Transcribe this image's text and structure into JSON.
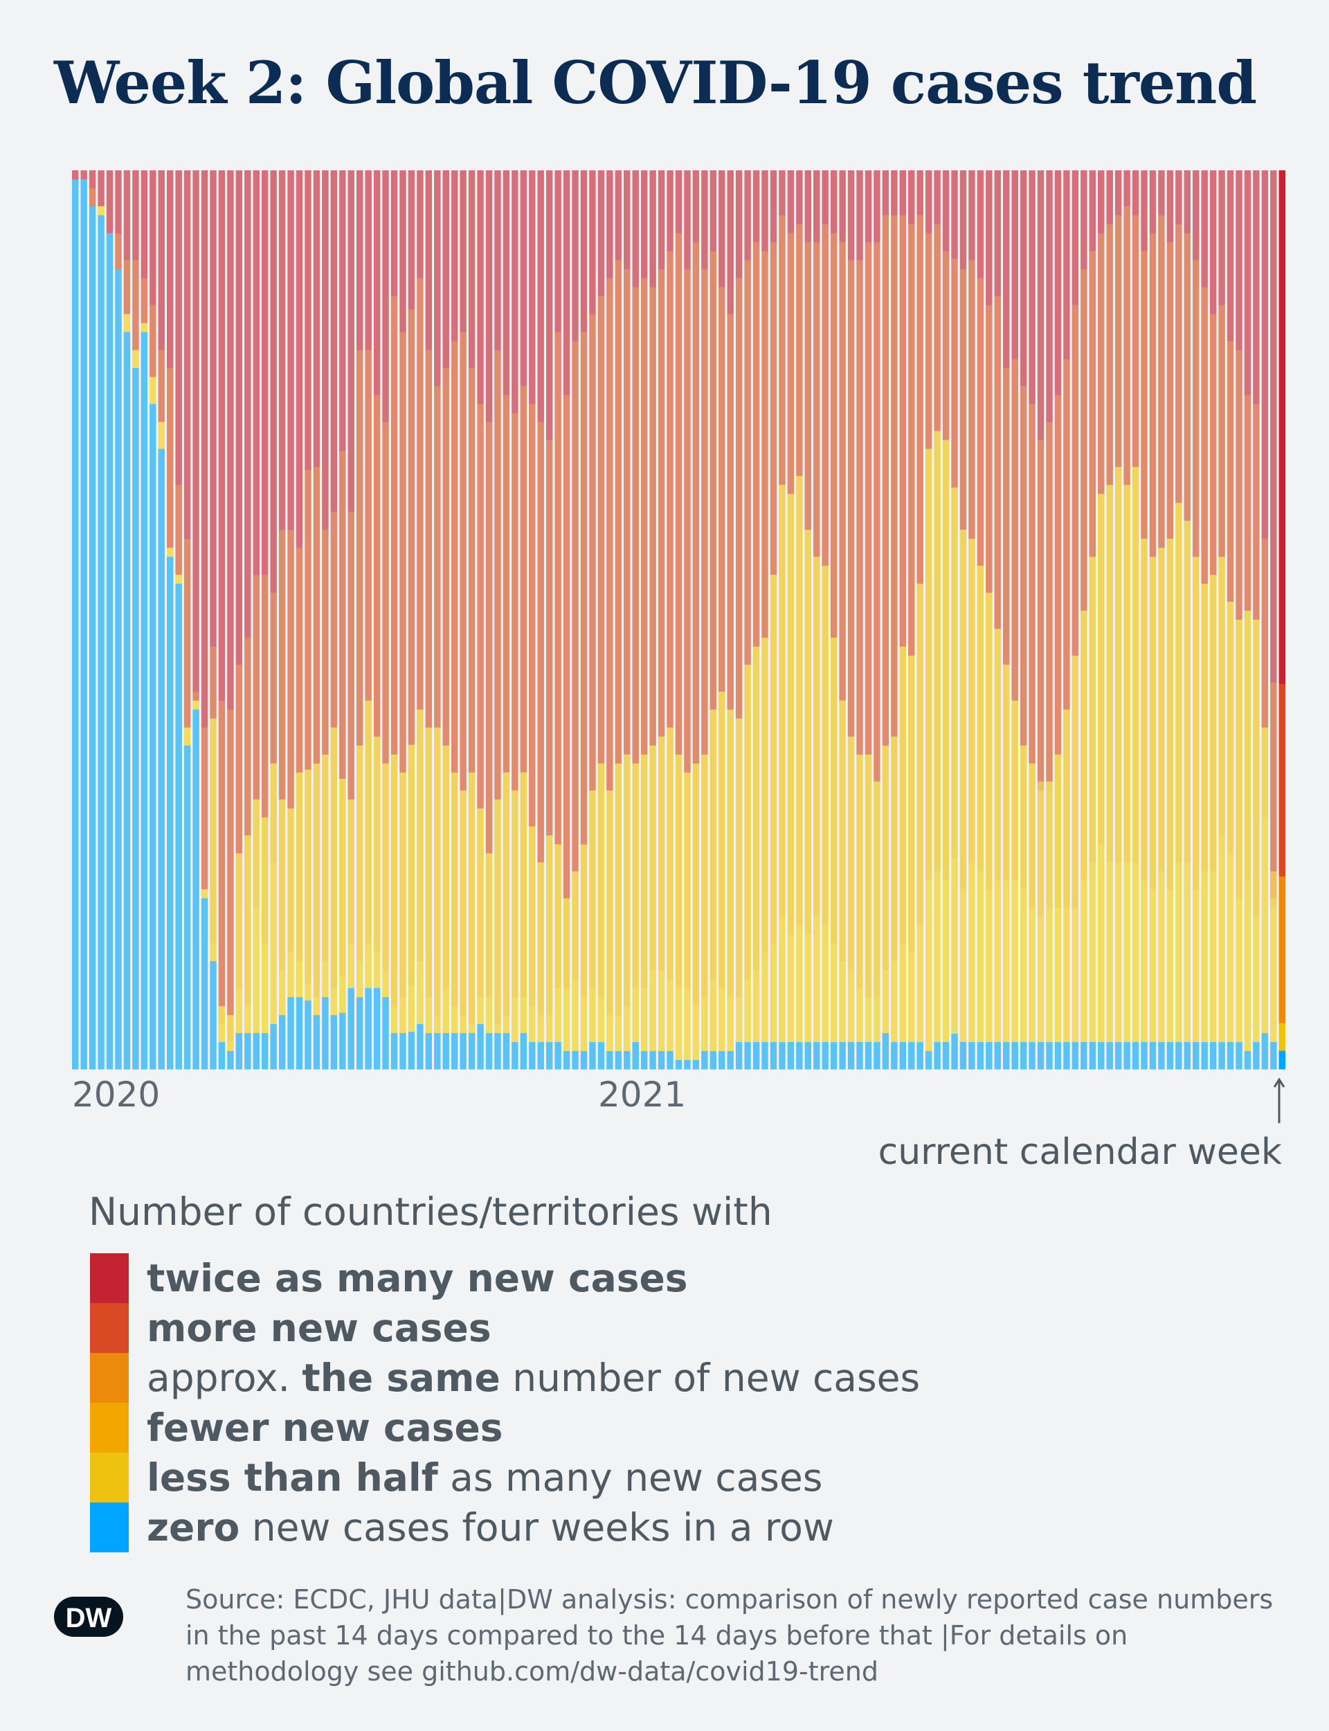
{
  "title": "Week 2: Global COVID-19 cases trend",
  "axis": {
    "year_2020": "2020",
    "year_2021": "2021"
  },
  "current_week_label": "current calendar week",
  "legend": {
    "heading": "Number of countries/territories with",
    "items": [
      {
        "bold": "twice as many new cases",
        "rest": "",
        "prefix": "",
        "color": "#c42331"
      },
      {
        "bold": "more new cases",
        "rest": "",
        "prefix": "",
        "color": "#d94a24"
      },
      {
        "bold": "the same",
        "rest": " number of new cases",
        "prefix": "approx. ",
        "color": "#ec8a0b"
      },
      {
        "bold": "fewer new cases",
        "rest": "",
        "prefix": "",
        "color": "#f2a700"
      },
      {
        "bold": "less than half",
        "rest": " as many new cases",
        "prefix": "",
        "color": "#eec20f"
      },
      {
        "bold": "zero",
        "rest": " new cases four weeks in a row",
        "prefix": "",
        "color": "#00a5ff"
      }
    ]
  },
  "source": "Source: ECDC, JHU data|DW analysis: comparison of newly reported case numbers in the past 14 days compared to the 14 days before that |For details on methodology see github.com/dw-data/covid19-trend",
  "logo_text": "DW",
  "colors": {
    "past": [
      "#d5707b",
      "#e08a6e",
      "#f1c05a",
      "#f1d460",
      "#f3dc63",
      "#5bc2f5"
    ],
    "current": [
      "#c42331",
      "#d94a24",
      "#ec8a0b",
      "#f2a700",
      "#eec20f",
      "#00a5ff"
    ]
  },
  "chart_data": {
    "type": "bar",
    "stacked": true,
    "normalized": true,
    "y_unit": "share of countries/territories (%)",
    "ylim": [
      0,
      100
    ],
    "series_order": [
      "twice as many new cases",
      "more new cases",
      "approx. the same",
      "fewer new cases",
      "less than half",
      "zero"
    ],
    "x_ticks": [
      {
        "label": "2020",
        "index": 0
      },
      {
        "label": "2021",
        "index": 74
      }
    ],
    "weeks": [
      [
        1,
        0,
        0,
        0,
        0,
        99
      ],
      [
        1,
        0,
        0,
        0,
        0,
        99
      ],
      [
        2,
        2,
        0,
        0,
        0,
        96
      ],
      [
        4,
        0,
        0,
        0,
        1,
        95
      ],
      [
        7,
        0,
        0,
        0,
        0,
        93
      ],
      [
        7,
        4,
        0,
        0,
        0,
        89
      ],
      [
        10,
        6,
        0,
        0,
        2,
        82
      ],
      [
        10,
        10,
        0,
        0,
        2,
        78
      ],
      [
        12,
        5,
        0,
        0,
        1,
        82
      ],
      [
        15,
        8,
        0,
        0,
        3,
        74
      ],
      [
        20,
        8,
        0,
        0,
        3,
        69
      ],
      [
        22,
        20,
        0,
        0,
        1,
        57
      ],
      [
        35,
        10,
        0,
        0,
        1,
        54
      ],
      [
        41,
        21,
        0,
        0,
        2,
        36
      ],
      [
        58,
        1,
        0,
        0,
        1,
        40
      ],
      [
        62,
        18,
        0,
        0,
        1,
        19
      ],
      [
        53,
        8,
        0,
        25,
        2,
        12
      ],
      [
        59,
        34,
        0,
        2,
        2,
        3
      ],
      [
        60,
        34,
        0,
        3,
        1,
        2
      ],
      [
        55,
        21,
        0,
        15,
        5,
        4
      ],
      [
        52,
        22,
        0,
        19,
        3,
        4
      ],
      [
        45,
        25,
        0,
        12,
        14,
        4
      ],
      [
        45,
        27,
        0,
        14,
        10,
        4
      ],
      [
        47,
        19,
        0,
        11,
        18,
        5
      ],
      [
        40,
        30,
        0,
        19,
        5,
        6
      ],
      [
        40,
        31,
        0,
        16,
        5,
        8
      ],
      [
        42,
        25,
        0,
        21,
        4,
        8
      ],
      [
        35,
        35,
        0,
        25,
        2,
        8
      ],
      [
        33,
        33,
        0,
        26,
        2,
        6
      ],
      [
        40,
        25,
        0,
        23,
        4,
        8
      ],
      [
        38,
        24,
        0,
        29,
        3,
        6
      ],
      [
        30,
        35,
        0,
        21,
        4,
        6
      ],
      [
        38,
        32,
        0,
        16,
        5,
        9
      ],
      [
        20,
        44,
        0,
        24,
        4,
        8
      ],
      [
        20,
        39,
        0,
        27,
        5,
        9
      ],
      [
        25,
        38,
        0,
        24,
        4,
        9
      ],
      [
        28,
        38,
        0,
        23,
        3,
        8
      ],
      [
        14,
        51,
        0,
        28,
        3,
        4
      ],
      [
        18,
        49,
        0,
        25,
        4,
        4
      ],
      [
        15,
        47,
        0,
        26,
        5,
        4
      ],
      [
        12,
        48,
        0,
        28,
        7,
        5
      ],
      [
        20,
        42,
        0,
        30,
        4,
        4
      ],
      [
        24,
        38,
        0,
        32,
        2,
        4
      ],
      [
        22,
        42,
        0,
        27,
        5,
        4
      ],
      [
        19,
        48,
        0,
        26,
        3,
        4
      ],
      [
        18,
        51,
        0,
        25,
        2,
        4
      ],
      [
        22,
        45,
        0,
        28,
        1,
        4
      ],
      [
        26,
        45,
        0,
        21,
        3,
        5
      ],
      [
        28,
        48,
        0,
        16,
        4,
        4
      ],
      [
        20,
        50,
        0,
        25,
        1,
        4
      ],
      [
        25,
        42,
        0,
        27,
        2,
        4
      ],
      [
        27,
        42,
        0,
        23,
        5,
        3
      ],
      [
        24,
        43,
        0,
        25,
        4,
        4
      ],
      [
        26,
        47,
        0,
        20,
        4,
        3
      ],
      [
        28,
        49,
        0,
        17,
        3,
        3
      ],
      [
        30,
        44,
        0,
        20,
        3,
        3
      ],
      [
        18,
        57,
        0,
        16,
        6,
        3
      ],
      [
        25,
        56,
        0,
        10,
        7,
        2
      ],
      [
        19,
        59,
        0,
        12,
        8,
        2
      ],
      [
        18,
        57,
        0,
        17,
        6,
        2
      ],
      [
        16,
        53,
        0,
        22,
        6,
        3
      ],
      [
        14,
        52,
        0,
        26,
        5,
        3
      ],
      [
        12,
        57,
        0,
        25,
        4,
        2
      ],
      [
        10,
        56,
        0,
        28,
        4,
        2
      ],
      [
        11,
        54,
        0,
        28,
        5,
        2
      ],
      [
        13,
        53,
        0,
        25,
        6,
        3
      ],
      [
        12,
        53,
        0,
        26,
        7,
        2
      ],
      [
        13,
        51,
        0,
        25,
        9,
        2
      ],
      [
        11,
        52,
        0,
        26,
        9,
        2
      ],
      [
        9,
        53,
        0,
        28,
        8,
        2
      ],
      [
        7,
        58,
        0,
        26,
        8,
        1
      ],
      [
        11,
        56,
        0,
        24,
        8,
        1
      ],
      [
        8,
        58,
        0,
        27,
        6,
        1
      ],
      [
        11,
        54,
        0,
        27,
        6,
        2
      ],
      [
        9,
        51,
        0,
        30,
        8,
        2
      ],
      [
        13,
        45,
        0,
        33,
        7,
        2
      ],
      [
        16,
        44,
        0,
        32,
        6,
        2
      ],
      [
        12,
        49,
        0,
        31,
        5,
        3
      ],
      [
        10,
        45,
        0,
        35,
        7,
        3
      ],
      [
        8,
        45,
        0,
        36,
        8,
        3
      ],
      [
        9,
        43,
        0,
        35,
        10,
        3
      ],
      [
        8,
        37,
        0,
        41,
        11,
        3
      ],
      [
        5,
        30,
        0,
        48,
        14,
        3
      ],
      [
        7,
        29,
        0,
        49,
        12,
        3
      ],
      [
        6,
        28,
        0,
        50,
        13,
        3
      ],
      [
        8,
        32,
        0,
        45,
        12,
        3
      ],
      [
        8,
        35,
        0,
        40,
        14,
        3
      ],
      [
        6,
        38,
        0,
        40,
        13,
        3
      ],
      [
        7,
        45,
        0,
        34,
        11,
        3
      ],
      [
        8,
        51,
        0,
        29,
        9,
        3
      ],
      [
        10,
        53,
        0,
        26,
        8,
        3
      ],
      [
        10,
        55,
        0,
        26,
        6,
        3
      ],
      [
        8,
        57,
        0,
        27,
        5,
        3
      ],
      [
        8,
        60,
        0,
        24,
        5,
        3
      ],
      [
        5,
        59,
        0,
        25,
        7,
        4
      ],
      [
        5,
        58,
        0,
        25,
        9,
        3
      ],
      [
        5,
        48,
        0,
        33,
        11,
        3
      ],
      [
        6,
        48,
        0,
        33,
        10,
        3
      ],
      [
        5,
        41,
        0,
        38,
        13,
        3
      ],
      [
        7,
        24,
        0,
        48,
        19,
        2
      ],
      [
        6,
        23,
        0,
        49,
        19,
        3
      ],
      [
        9,
        21,
        0,
        49,
        18,
        3
      ],
      [
        10,
        26,
        0,
        42,
        20,
        4
      ],
      [
        11,
        29,
        0,
        40,
        17,
        3
      ],
      [
        10,
        31,
        0,
        36,
        20,
        3
      ],
      [
        12,
        32,
        0,
        34,
        19,
        3
      ],
      [
        15,
        32,
        0,
        33,
        17,
        3
      ],
      [
        14,
        37,
        0,
        28,
        18,
        3
      ],
      [
        22,
        33,
        0,
        24,
        18,
        3
      ],
      [
        21,
        38,
        0,
        20,
        18,
        3
      ],
      [
        24,
        40,
        0,
        16,
        17,
        3
      ],
      [
        26,
        40,
        0,
        16,
        15,
        3
      ],
      [
        30,
        38,
        1,
        14,
        14,
        3
      ],
      [
        28,
        40,
        0,
        14,
        15,
        3
      ],
      [
        25,
        40,
        0,
        17,
        15,
        3
      ],
      [
        21,
        39,
        0,
        22,
        15,
        3
      ],
      [
        15,
        39,
        0,
        28,
        15,
        3
      ],
      [
        11,
        38,
        0,
        30,
        18,
        3
      ],
      [
        9,
        34,
        0,
        34,
        20,
        3
      ],
      [
        7,
        29,
        0,
        39,
        22,
        3
      ],
      [
        6,
        29,
        0,
        42,
        20,
        3
      ],
      [
        5,
        28,
        0,
        44,
        20,
        3
      ],
      [
        4,
        31,
        0,
        42,
        20,
        3
      ],
      [
        5,
        28,
        0,
        44,
        20,
        3
      ],
      [
        9,
        32,
        0,
        38,
        18,
        3
      ],
      [
        7,
        36,
        0,
        37,
        17,
        3
      ],
      [
        5,
        37,
        0,
        36,
        19,
        3
      ],
      [
        8,
        33,
        0,
        39,
        17,
        3
      ],
      [
        6,
        31,
        0,
        40,
        20,
        3
      ],
      [
        7,
        32,
        0,
        38,
        20,
        3
      ],
      [
        10,
        33,
        0,
        37,
        17,
        3
      ],
      [
        13,
        33,
        0,
        32,
        19,
        3
      ],
      [
        16,
        29,
        0,
        33,
        19,
        3
      ],
      [
        15,
        28,
        0,
        31,
        23,
        3
      ],
      [
        19,
        29,
        0,
        28,
        21,
        3
      ],
      [
        20,
        30,
        0,
        31,
        16,
        3
      ],
      [
        25,
        24,
        0,
        30,
        19,
        2
      ],
      [
        26,
        24,
        0,
        33,
        14,
        3
      ],
      [
        41,
        21,
        0,
        10,
        24,
        4
      ],
      [
        57,
        21,
        3,
        1,
        15,
        3
      ],
      [
        56,
        21,
        16,
        0,
        3,
        2
      ]
    ]
  }
}
